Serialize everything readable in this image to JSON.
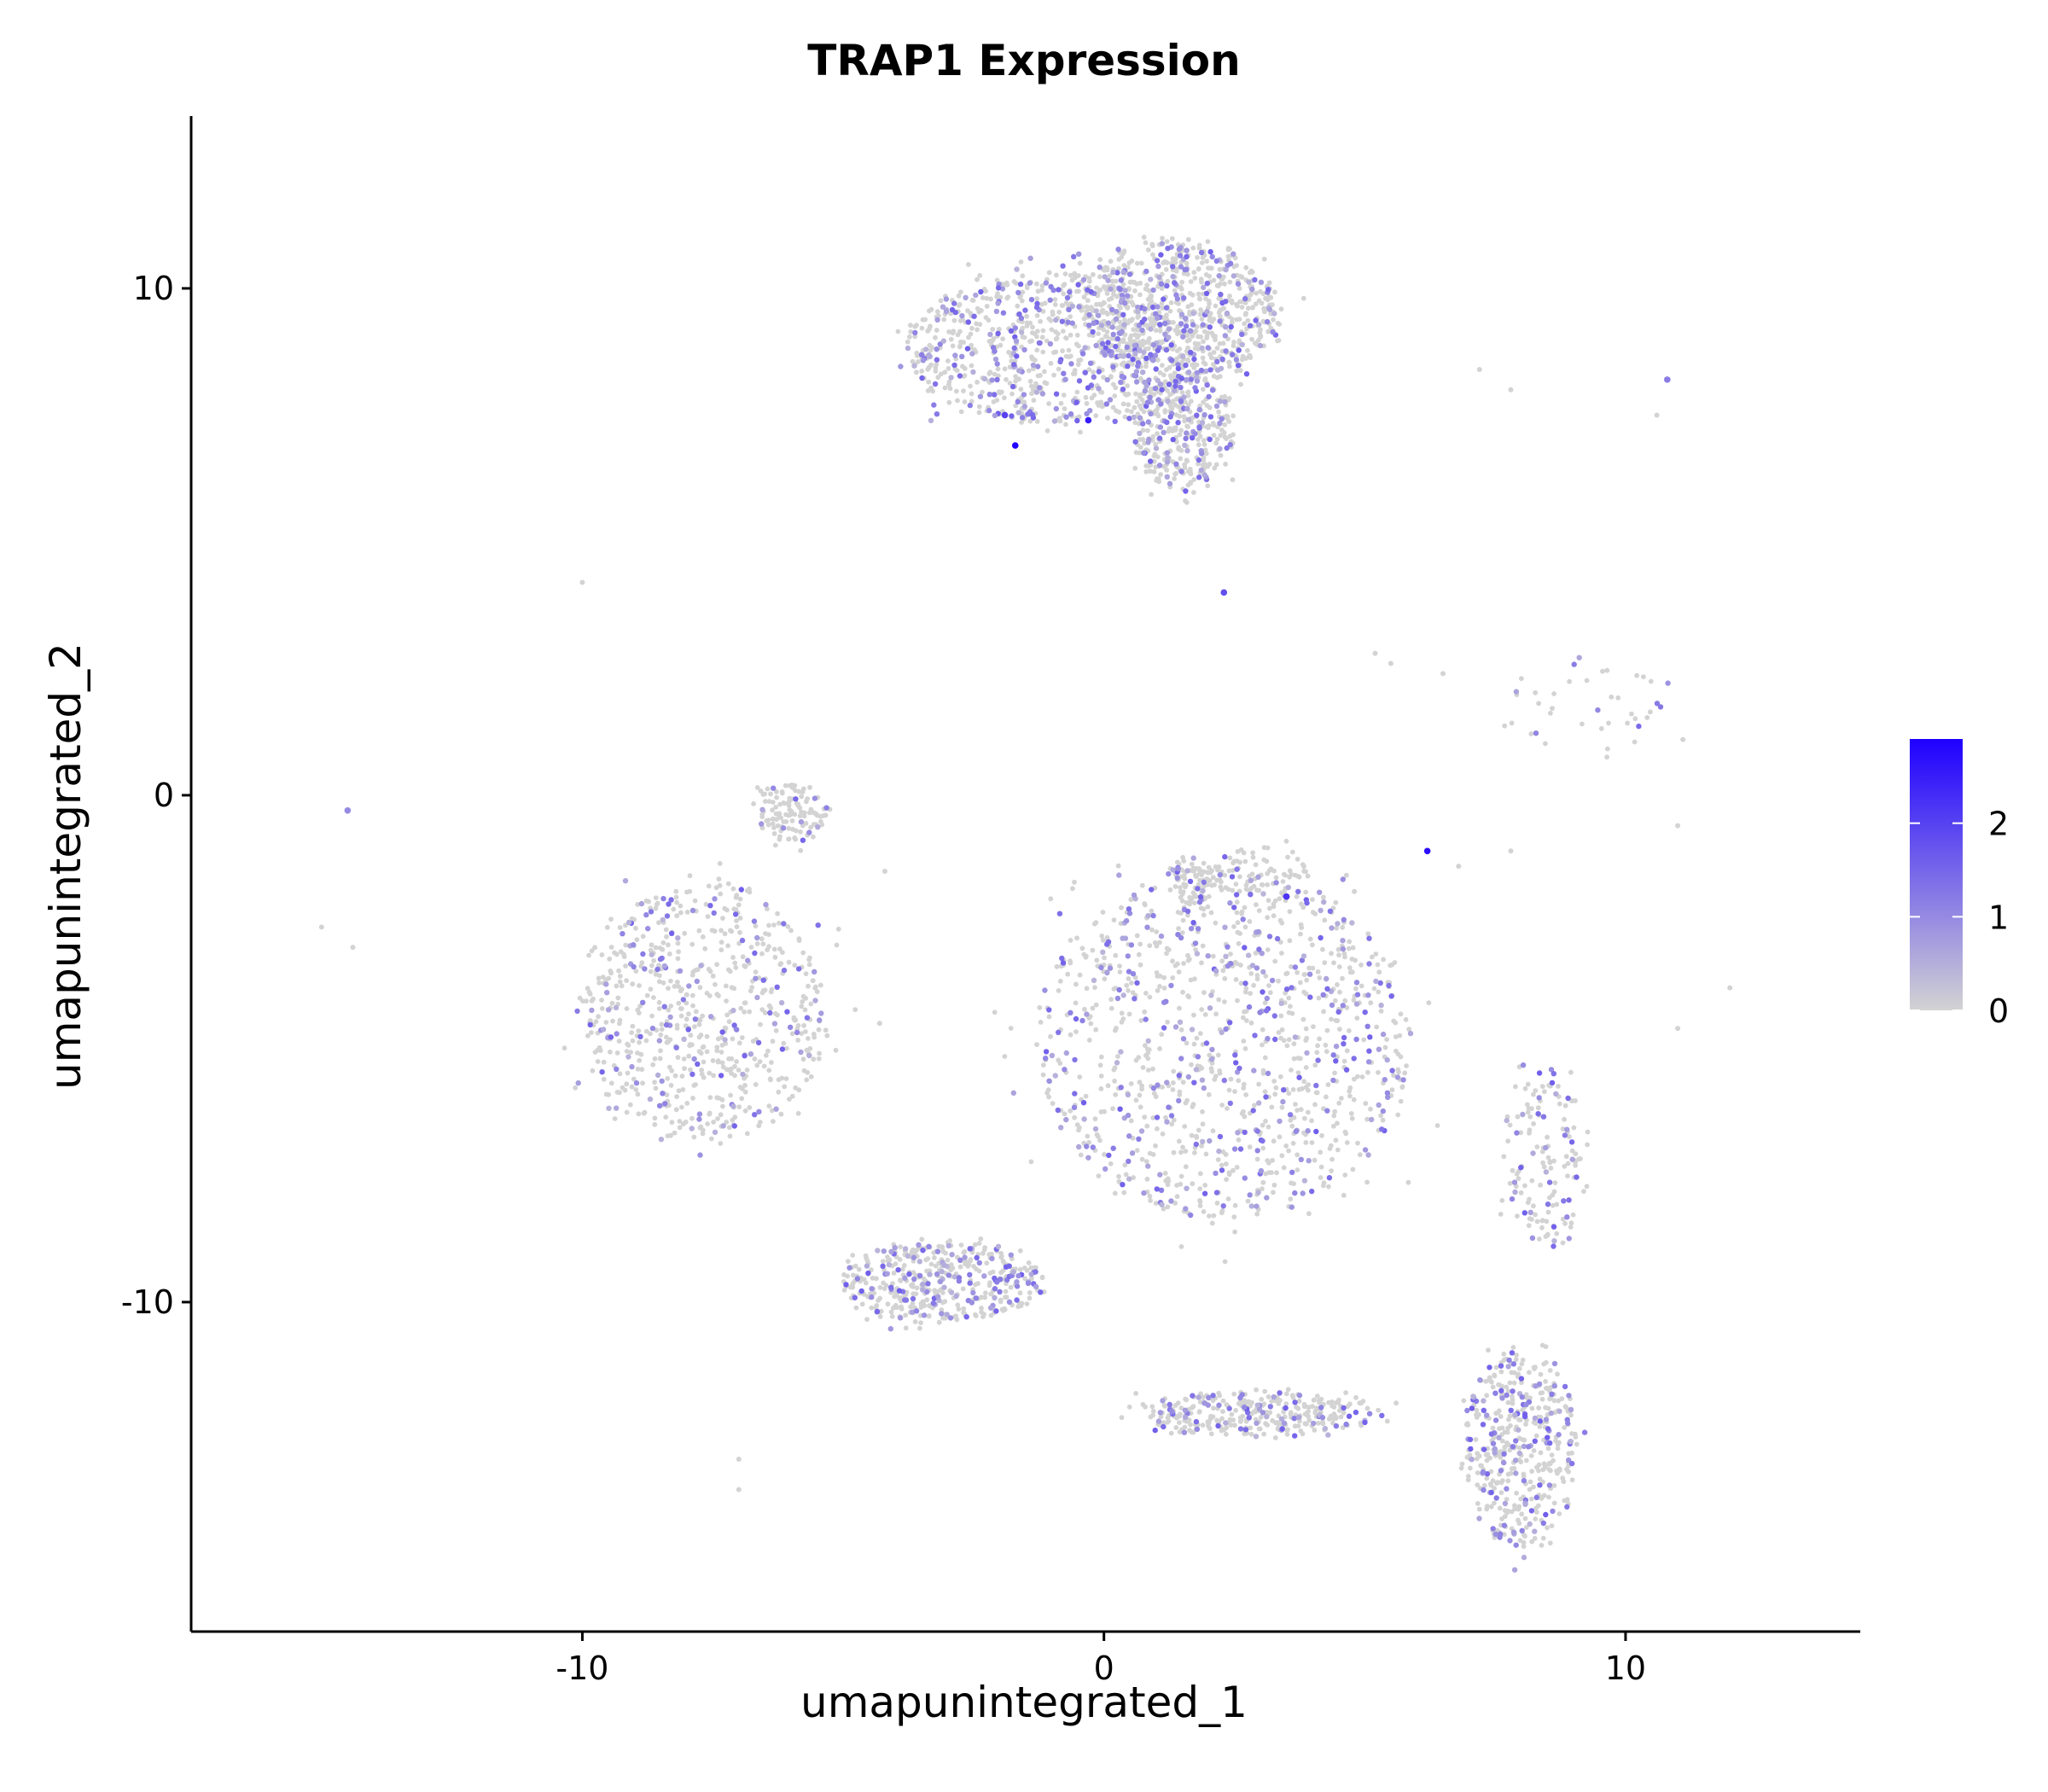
{
  "chart_data": {
    "type": "scatter",
    "title": "TRAP1 Expression",
    "xlabel": "umapunintegrated_1",
    "ylabel": "umapunintegrated_2",
    "xlim": [
      -17.5,
      14.5
    ],
    "ylim": [
      -16.5,
      13.4
    ],
    "x_ticks": [
      -10,
      0,
      10
    ],
    "y_ticks": [
      -10,
      0,
      10
    ],
    "legend": {
      "placement": "right",
      "range": [
        0,
        2.9
      ],
      "ticks": [
        0,
        1,
        2
      ],
      "color_low": "#d3d3d3",
      "color_high": "#1f00ff"
    },
    "clusters": [
      {
        "name": "top-left lobe",
        "cx": -0.8,
        "cy": 8.8,
        "rx": 3.0,
        "ry": 1.5,
        "n": 900,
        "expr": 0.28
      },
      {
        "name": "top-right lobe",
        "cx": 1.5,
        "cy": 9.6,
        "rx": 1.9,
        "ry": 1.4,
        "n": 650,
        "expr": 0.22
      },
      {
        "name": "top stem",
        "cx": 1.5,
        "cy": 7.2,
        "rx": 1.0,
        "ry": 1.2,
        "n": 350,
        "expr": 0.22
      },
      {
        "name": "left cluster",
        "cx": -7.7,
        "cy": -4.3,
        "rx": 2.4,
        "ry": 2.6,
        "n": 700,
        "expr": 0.2
      },
      {
        "name": "left cluster top",
        "cx": -6.0,
        "cy": -0.3,
        "rx": 0.7,
        "ry": 0.6,
        "n": 120,
        "expr": 0.08
      },
      {
        "name": "center cluster",
        "cx": 2.3,
        "cy": -4.9,
        "rx": 3.6,
        "ry": 3.5,
        "n": 1100,
        "expr": 0.3
      },
      {
        "name": "center small upper",
        "cx": 1.7,
        "cy": -1.7,
        "rx": 0.5,
        "ry": 0.5,
        "n": 80,
        "expr": 0.15
      },
      {
        "name": "center right small",
        "cx": 3.0,
        "cy": -1.5,
        "rx": 0.9,
        "ry": 0.5,
        "n": 70,
        "expr": 0.1
      },
      {
        "name": "lower-left elongated",
        "cx": -3.1,
        "cy": -9.6,
        "rx": 1.9,
        "ry": 0.8,
        "n": 450,
        "expr": 0.25
      },
      {
        "name": "bottom band",
        "cx": 2.9,
        "cy": -12.2,
        "rx": 2.2,
        "ry": 0.45,
        "n": 350,
        "expr": 0.22
      },
      {
        "name": "bottom right triangle",
        "cx": 8.0,
        "cy": -12.9,
        "rx": 1.1,
        "ry": 2.0,
        "n": 450,
        "expr": 0.3
      },
      {
        "name": "right small cluster",
        "cx": 8.5,
        "cy": -7.2,
        "rx": 0.8,
        "ry": 1.8,
        "n": 150,
        "expr": 0.2
      },
      {
        "name": "right scattered group",
        "cx": 9.2,
        "cy": 1.8,
        "rx": 1.7,
        "ry": 0.9,
        "n": 40,
        "expr": 0.3
      }
    ],
    "highlights": [
      {
        "x": -1.7,
        "y": 6.9,
        "expr": 2.9
      },
      {
        "x": -0.3,
        "y": 7.4,
        "expr": 2.5
      },
      {
        "x": 6.2,
        "y": -1.1,
        "expr": 2.7
      },
      {
        "x": 3.5,
        "y": -2.0,
        "expr": 2.2
      },
      {
        "x": -1.9,
        "y": 7.5,
        "expr": 2.0
      },
      {
        "x": 2.3,
        "y": 4.0,
        "expr": 1.8
      },
      {
        "x": -14.5,
        "y": -0.3,
        "expr": 1.0
      },
      {
        "x": 10.8,
        "y": 8.2,
        "expr": 1.2
      }
    ],
    "outliers": [
      {
        "x": -10.0,
        "y": 4.2
      },
      {
        "x": -15.0,
        "y": -2.6
      },
      {
        "x": -14.4,
        "y": -3.0
      },
      {
        "x": -7.0,
        "y": -13.1
      },
      {
        "x": -7.0,
        "y": -13.7
      },
      {
        "x": 7.2,
        "y": 8.4
      },
      {
        "x": 7.8,
        "y": 8.0
      },
      {
        "x": 10.6,
        "y": 7.5
      },
      {
        "x": 5.2,
        "y": 2.8
      },
      {
        "x": 5.5,
        "y": 2.6
      },
      {
        "x": 6.5,
        "y": 2.4
      },
      {
        "x": 11.1,
        "y": 1.1
      },
      {
        "x": 12.0,
        "y": -3.8
      },
      {
        "x": 11.0,
        "y": -0.6
      },
      {
        "x": 6.8,
        "y": -1.4
      },
      {
        "x": 7.8,
        "y": -1.1
      },
      {
        "x": 4.8,
        "y": -1.9
      },
      {
        "x": 11.0,
        "y": -4.6
      },
      {
        "x": -4.3,
        "y": -4.5
      },
      {
        "x": -4.2,
        "y": -1.5
      }
    ]
  }
}
